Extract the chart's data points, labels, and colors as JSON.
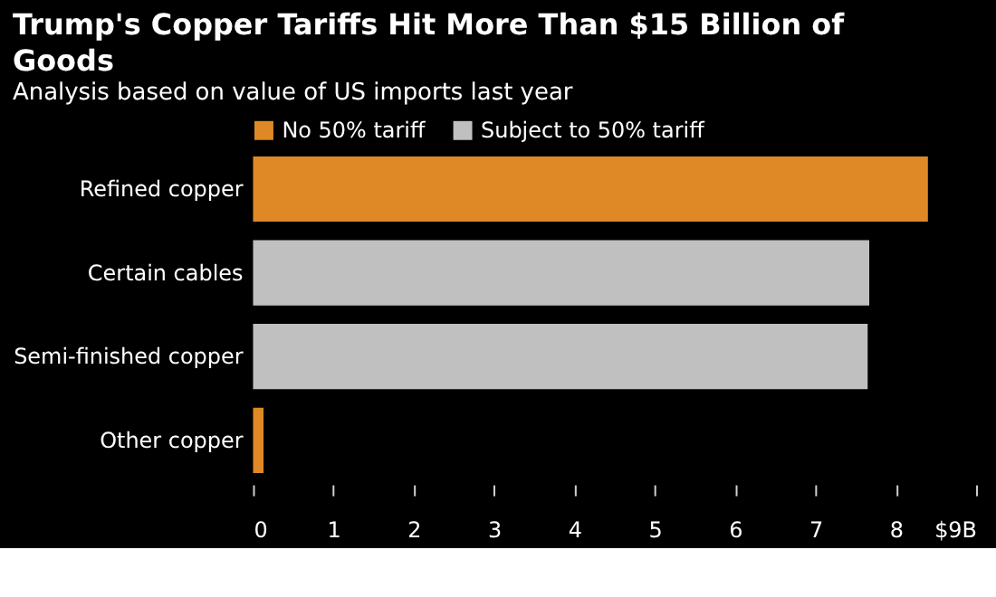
{
  "chart_data": {
    "type": "bar",
    "orientation": "horizontal",
    "title": "Trump's Copper Tariffs Hit More Than $15 Billion of Goods",
    "subtitle": "Analysis based on value of US imports last year",
    "categories": [
      "Refined copper",
      "Certain cables",
      "Semi-finished copper",
      "Other copper"
    ],
    "series": [
      {
        "name": "No 50% tariff",
        "color": "#de8926",
        "values": [
          8.4,
          null,
          null,
          0.13
        ]
      },
      {
        "name": "Subject to 50% tariff",
        "color": "#c0c0c0",
        "values": [
          null,
          7.67,
          7.65,
          null
        ]
      }
    ],
    "xlim": [
      0,
      9
    ],
    "xticks": [
      0,
      1,
      2,
      3,
      4,
      5,
      6,
      7,
      8,
      {
        "value": 9,
        "label": "$9B"
      }
    ],
    "grid": false,
    "legend": "top left"
  }
}
